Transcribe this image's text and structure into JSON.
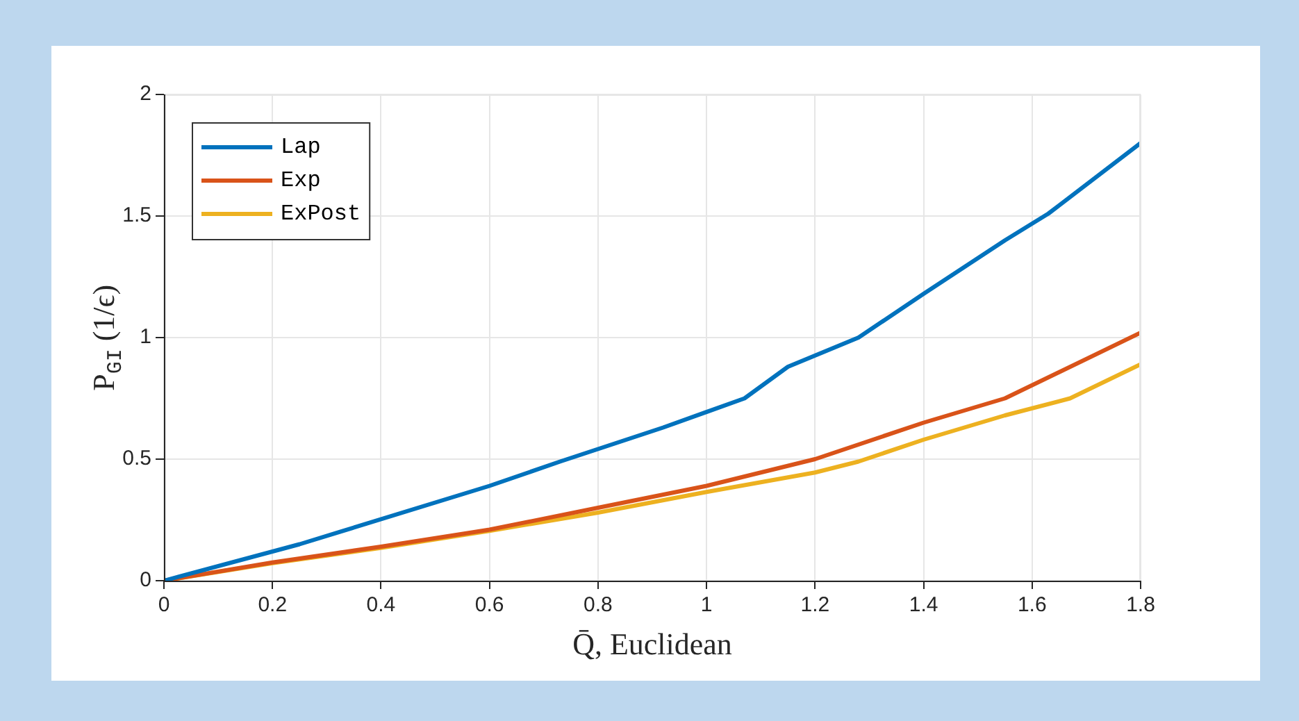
{
  "chart_data": {
    "type": "line",
    "xlabel": "Q̄, Euclidean",
    "ylabel": "P$_{GI}$ (1/ϵ)",
    "xlim": [
      0,
      1.8
    ],
    "xticks": [
      0,
      0.2,
      0.4,
      0.6,
      0.8,
      1,
      1.2,
      1.4,
      1.6,
      1.8
    ],
    "ylim": [
      0,
      2
    ],
    "yticks": [
      0,
      0.5,
      1,
      1.5,
      2
    ],
    "grid": true,
    "legend": "top left",
    "marker": "none",
    "line_style": "solid",
    "series": [
      {
        "name": "Lap",
        "color": "#0072bd",
        "x": [
          0,
          0.25,
          0.6,
          0.73,
          0.92,
          1.07,
          1.15,
          1.28,
          1.4,
          1.55,
          1.63,
          1.8
        ],
        "values": [
          0,
          0.15,
          0.39,
          0.49,
          0.63,
          0.75,
          0.88,
          1.0,
          1.18,
          1.4,
          1.51,
          1.8
        ]
      },
      {
        "name": "Exp",
        "color": "#d95319",
        "x": [
          0,
          0.2,
          0.4,
          0.6,
          0.8,
          1.0,
          1.2,
          1.4,
          1.55,
          1.8
        ],
        "values": [
          0,
          0.075,
          0.14,
          0.21,
          0.3,
          0.39,
          0.5,
          0.65,
          0.75,
          1.02
        ]
      },
      {
        "name": "ExPost",
        "color": "#edb120",
        "x": [
          0,
          0.2,
          0.4,
          0.6,
          0.8,
          1.0,
          1.2,
          1.28,
          1.4,
          1.55,
          1.67,
          1.8
        ],
        "values": [
          0,
          0.072,
          0.135,
          0.205,
          0.28,
          0.365,
          0.445,
          0.49,
          0.58,
          0.68,
          0.75,
          0.89
        ]
      }
    ]
  }
}
